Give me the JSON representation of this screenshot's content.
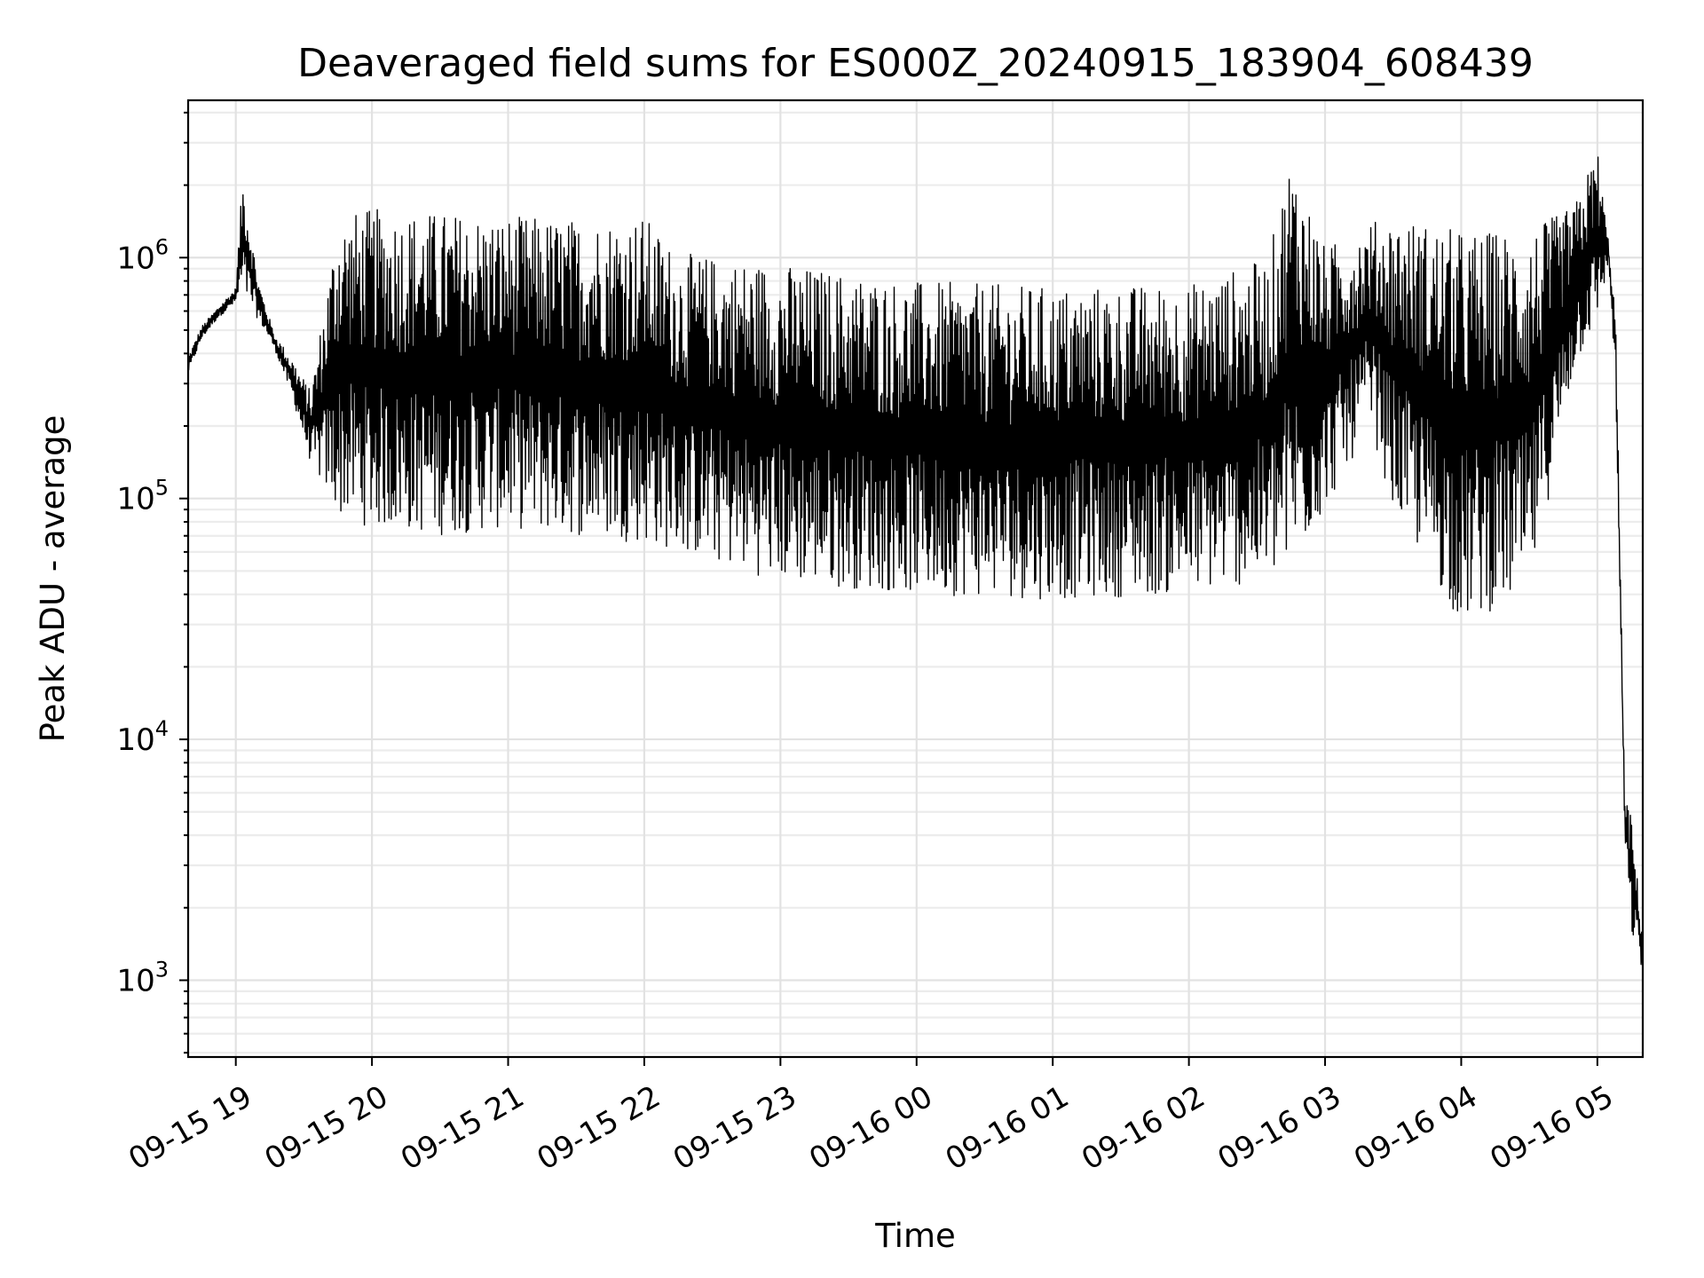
{
  "chart_data": {
    "type": "line",
    "title": "Deaveraged field sums for ES000Z_20240915_183904_608439",
    "xlabel": "Time",
    "ylabel": "Peak ADU - average",
    "yscale": "log",
    "grid": true,
    "line_color": "#000000",
    "xlim": [
      "2024-09-15T18:39",
      "2024-09-16T05:20"
    ],
    "ylim": [
      480,
      4500000
    ],
    "x_ticks": [
      "09-15 19",
      "09-15 20",
      "09-15 21",
      "09-15 22",
      "09-15 23",
      "09-16 00",
      "09-16 01",
      "09-16 02",
      "09-16 03",
      "09-16 04",
      "09-16 05"
    ],
    "y_ticks": [
      {
        "base": "10",
        "exp": "3",
        "value": 1000
      },
      {
        "base": "10",
        "exp": "4",
        "value": 10000
      },
      {
        "base": "10",
        "exp": "5",
        "value": 100000
      },
      {
        "base": "10",
        "exp": "6",
        "value": 1000000
      }
    ],
    "series": [
      {
        "x": [
          "2024-09-15T18:39",
          "2024-09-15T18:45",
          "2024-09-15T18:52",
          "2024-09-15T19:00",
          "2024-09-15T19:03",
          "2024-09-15T19:10",
          "2024-09-15T19:17",
          "2024-09-15T19:25",
          "2024-09-15T19:33",
          "2024-09-15T19:45",
          "2024-09-15T20:00",
          "2024-09-15T20:30",
          "2024-09-15T21:00",
          "2024-09-15T21:30",
          "2024-09-15T22:00",
          "2024-09-15T22:15",
          "2024-09-15T23:00",
          "2024-09-16T00:00",
          "2024-09-16T01:00",
          "2024-09-16T02:00",
          "2024-09-16T02:35",
          "2024-09-16T02:45",
          "2024-09-16T03:00",
          "2024-09-16T03:20",
          "2024-09-16T03:30",
          "2024-09-16T04:00",
          "2024-09-16T04:30",
          "2024-09-16T04:50",
          "2024-09-16T05:00",
          "2024-09-16T05:05",
          "2024-09-16T05:08",
          "2024-09-16T05:12",
          "2024-09-16T05:15",
          "2024-09-16T05:18",
          "2024-09-16T05:20"
        ],
        "upper": [
          390000,
          520000,
          620000,
          750000,
          2200000,
          800000,
          480000,
          380000,
          280000,
          1500000,
          1600000,
          1550000,
          1500000,
          1450000,
          1500000,
          1050000,
          950000,
          800000,
          760000,
          780000,
          1000000,
          2800000,
          1100000,
          1400000,
          1500000,
          1300000,
          1300000,
          1650000,
          2900000,
          1150000,
          600000,
          6000,
          4800,
          2400,
          1500
        ],
        "lower": [
          330000,
          460000,
          560000,
          650000,
          700000,
          550000,
          420000,
          260000,
          140000,
          85000,
          75000,
          70000,
          75000,
          70000,
          65000,
          60000,
          45000,
          40000,
          38000,
          40000,
          45000,
          50000,
          90000,
          200000,
          90000,
          30000,
          40000,
          350000,
          550000,
          950000,
          300000,
          4000,
          1500,
          1400,
          1000
        ]
      }
    ]
  }
}
